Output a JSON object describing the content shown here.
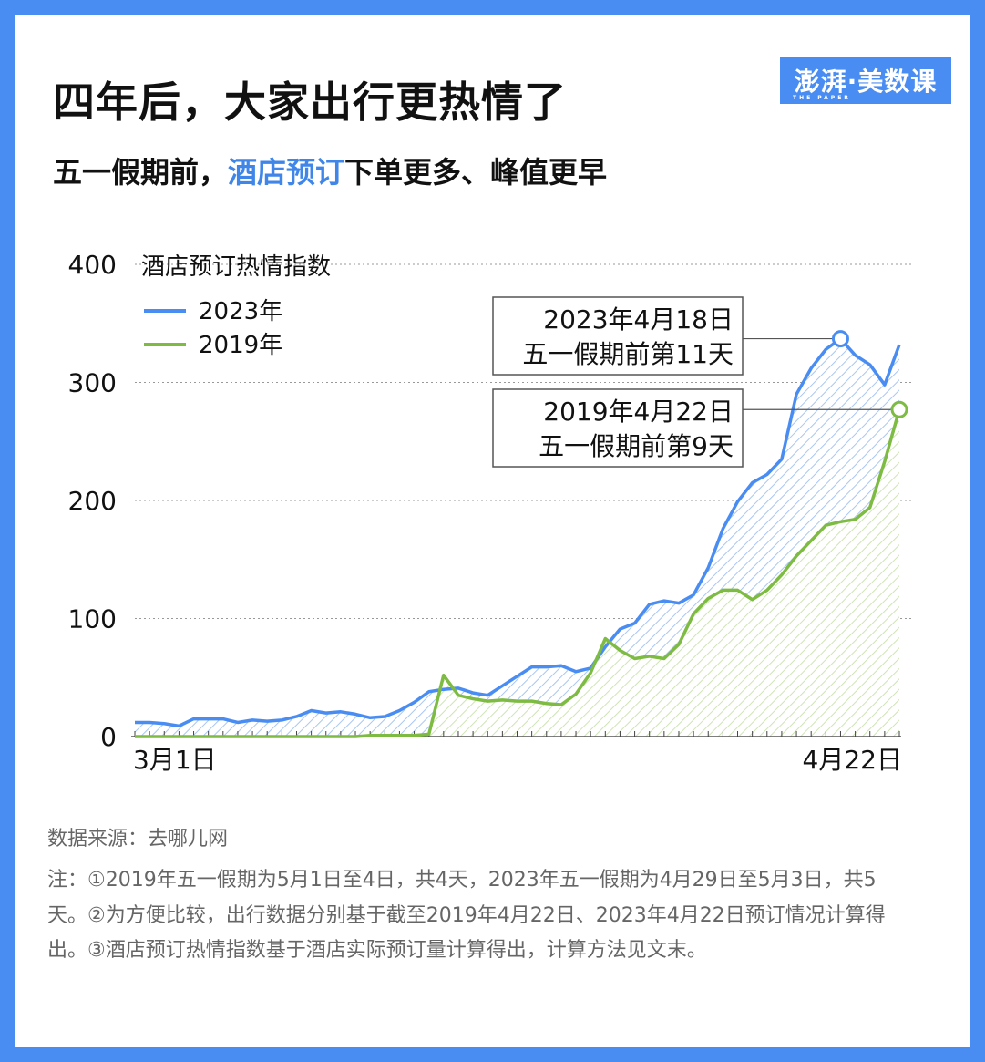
{
  "title": "四年后，大家出行更热情了",
  "subtitle": {
    "before": "五一假期前，",
    "highlight": "酒店预订",
    "after": "下单更多、峰值更早"
  },
  "logo": {
    "text": "澎湃·美数课",
    "sub": "THE PAPER"
  },
  "colors": {
    "frame": "#4a8df2",
    "series_2023": "#4a8df2",
    "series_2019": "#7dbb42",
    "highlight": "#3f86e8"
  },
  "chart_data": {
    "type": "area",
    "ylabel": "酒店预订热情指数",
    "ylim": [
      0,
      400
    ],
    "yticks": [
      "0",
      "100",
      "200",
      "300",
      "400"
    ],
    "x_range": [
      "3月1日",
      "4月22日"
    ],
    "xtick_labels": [
      "3月1日",
      "4月22日"
    ],
    "grid": "horizontal dotted",
    "legend_placement": "top-left",
    "series": [
      {
        "name": "2023年",
        "values": [
          12,
          12,
          11,
          9,
          15,
          15,
          15,
          12,
          14,
          13,
          14,
          17,
          22,
          20,
          21,
          19,
          16,
          17,
          22,
          29,
          38,
          40,
          41,
          37,
          35,
          43,
          51,
          59,
          59,
          60,
          55,
          58,
          76,
          91,
          96,
          112,
          115,
          113,
          120,
          143,
          176,
          199,
          215,
          222,
          235,
          290,
          312,
          328,
          337,
          323,
          315,
          298,
          332
        ]
      },
      {
        "name": "2019年",
        "values": [
          0,
          0,
          0,
          0,
          0,
          0,
          0,
          0,
          0,
          0,
          0,
          0,
          0,
          0,
          0,
          0,
          1,
          1,
          1,
          1,
          2,
          52,
          35,
          32,
          30,
          31,
          30,
          30,
          28,
          27,
          36,
          54,
          83,
          73,
          66,
          68,
          66,
          78,
          104,
          117,
          124,
          124,
          116,
          124,
          137,
          153,
          166,
          179,
          182,
          184,
          194,
          233,
          277
        ]
      }
    ],
    "annotations": [
      {
        "series": "2023年",
        "index": 48,
        "lines": [
          "2023年4月18日",
          "五一假期前第11天"
        ]
      },
      {
        "series": "2019年",
        "index": 52,
        "lines": [
          "2019年4月22日",
          "五一假期前第9天"
        ]
      }
    ]
  },
  "footer": {
    "source": "数据来源：去哪儿网",
    "note": "注：①2019年五一假期为5月1日至4日，共4天，2023年五一假期为4月29日至5月3日，共5天。②为方便比较，出行数据分别基于截至2019年4月22日、2023年4月22日预订情况计算得出。③酒店预订热情指数基于酒店实际预订量计算得出，计算方法见文末。"
  }
}
